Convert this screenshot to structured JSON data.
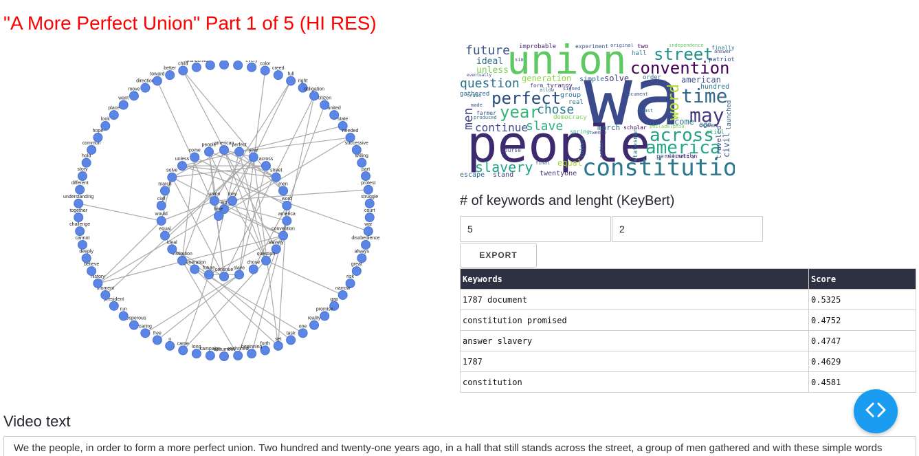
{
  "title": "\"A More Perfect Union\" Part 1 of 5 (HI RES)",
  "network": {
    "outer_nodes": [
      "government",
      "woman",
      "every",
      "color",
      "creed",
      "full",
      "right",
      "obligation",
      "citizen",
      "united",
      "state",
      "needed",
      "successive",
      "willing",
      "part",
      "protest",
      "struggle",
      "court",
      "war",
      "disobedience",
      "always",
      "great",
      "risk",
      "narrow",
      "gap",
      "promise",
      "reality",
      "one",
      "task",
      "set",
      "forth",
      "beginning",
      "enshrined",
      "document",
      "campaign",
      "long",
      "came",
      "u",
      "free",
      "caring",
      "prosperous",
      "run",
      "president",
      "moment",
      "history",
      "believe",
      "deeply",
      "cannot",
      "challenge",
      "together",
      "understanding",
      "different",
      "story",
      "hold",
      "common",
      "hope",
      "look",
      "place",
      "want",
      "move",
      "direction",
      "toward",
      "better",
      "child",
      "grandchild",
      "belief"
    ],
    "inner_nodes": [
      "american",
      "perfect",
      "year",
      "across",
      "street",
      "men",
      "word",
      "america",
      "convention",
      "slavery",
      "question",
      "chose",
      "slave",
      "continue",
      "future",
      "generation",
      "institution",
      "ideal",
      "equal",
      "would",
      "civil",
      "march",
      "solve",
      "unless",
      "come",
      "people",
      "union",
      "may",
      "wa",
      "time"
    ]
  },
  "wordcloud": {
    "words": [
      {
        "t": "wa",
        "c": "#3b4a8a"
      },
      {
        "t": "people",
        "c": "#3e2a6e"
      },
      {
        "t": "union",
        "c": "#5ec962"
      },
      {
        "t": "constitution",
        "c": "#2a788e"
      },
      {
        "t": "perfect",
        "c": "#2c4c80"
      },
      {
        "t": "convention",
        "c": "#440154"
      },
      {
        "t": "street",
        "c": "#21918c"
      },
      {
        "t": "time",
        "c": "#31688e"
      },
      {
        "t": "america",
        "c": "#22a884"
      },
      {
        "t": "across",
        "c": "#25a187"
      },
      {
        "t": "may",
        "c": "#443983"
      },
      {
        "t": "year",
        "c": "#35b779"
      },
      {
        "t": "slavery",
        "c": "#20a486"
      },
      {
        "t": "chose",
        "c": "#2a788e"
      },
      {
        "t": "slave",
        "c": "#29af7f"
      },
      {
        "t": "question",
        "c": "#2c728e"
      },
      {
        "t": "future",
        "c": "#3b528b"
      },
      {
        "t": "word",
        "c": "#b5de2b"
      },
      {
        "t": "continue",
        "c": "#3e4989"
      },
      {
        "t": "men",
        "c": "#414487"
      },
      {
        "t": "ideal",
        "c": "#2d708e"
      },
      {
        "t": "unless",
        "c": "#7ad151"
      },
      {
        "t": "american",
        "c": "#3b528b"
      },
      {
        "t": "hundred",
        "c": "#2a788e"
      },
      {
        "t": "march",
        "c": "#33638d"
      },
      {
        "t": "solve",
        "c": "#472d7b"
      },
      {
        "t": "equal",
        "c": "#addc30"
      },
      {
        "t": "generation",
        "c": "#90d743"
      },
      {
        "t": "civil",
        "c": "#3b528b"
      },
      {
        "t": "come",
        "c": "#2a788e"
      },
      {
        "t": "twentyone",
        "c": "#46337e"
      },
      {
        "t": "stand",
        "c": "#3e4989"
      },
      {
        "t": "escape",
        "c": "#31688e"
      },
      {
        "t": "improbable",
        "c": "#482475"
      },
      {
        "t": "experiment",
        "c": "#3b528b"
      },
      {
        "t": "two",
        "c": "#440154"
      },
      {
        "t": "hall",
        "c": "#287c8e"
      },
      {
        "t": "finally",
        "c": "#2a788e"
      },
      {
        "t": "patriot",
        "c": "#3b528b"
      },
      {
        "t": "ago",
        "c": "#2c728e"
      },
      {
        "t": "order",
        "c": "#31688e"
      },
      {
        "t": "launched",
        "c": "#33638d"
      },
      {
        "t": "traveled",
        "c": "#3e4989"
      },
      {
        "t": "group",
        "c": "#2d708e"
      },
      {
        "t": "farmer",
        "c": "#3b528b"
      },
      {
        "t": "gathered",
        "c": "#31688e"
      },
      {
        "t": "democracy",
        "c": "#7ad151"
      },
      {
        "t": "spring",
        "c": "#35b779"
      },
      {
        "t": "statesman",
        "c": "#2a788e"
      },
      {
        "t": "persecution",
        "c": "#3e4989"
      },
      {
        "t": "ocean",
        "c": "#3b528b"
      },
      {
        "t": "scholar",
        "c": "#440154"
      },
      {
        "t": "simple",
        "c": "#31688e"
      },
      {
        "t": "real",
        "c": "#2c728e"
      },
      {
        "t": "form",
        "c": "#3e4989"
      },
      {
        "t": "tyranny",
        "c": "#482878"
      },
      {
        "t": "twenty",
        "c": "#3b528b"
      },
      {
        "t": "nation",
        "c": "#31688e"
      },
      {
        "t": "colony",
        "c": "#2a788e"
      },
      {
        "t": "still",
        "c": "#35b779"
      },
      {
        "t": "original",
        "c": "#3b528b"
      },
      {
        "t": "independence",
        "c": "#5ec962"
      },
      {
        "t": "answer",
        "c": "#3e4989"
      },
      {
        "t": "document",
        "c": "#3b528b"
      },
      {
        "t": "least",
        "c": "#2c728e"
      },
      {
        "t": "philadelphia",
        "c": "#7ad151"
      },
      {
        "t": "course",
        "c": "#3b528b"
      },
      {
        "t": "final",
        "c": "#3e4989"
      },
      {
        "t": "ultimately",
        "c": "#482475"
      },
      {
        "t": "produced",
        "c": "#31688e"
      },
      {
        "t": "eventually",
        "c": "#3e4989"
      },
      {
        "t": "trade",
        "c": "#2a788e"
      },
      {
        "t": "made",
        "c": "#3b528b"
      },
      {
        "t": "sin",
        "c": "#3e4989"
      },
      {
        "t": "signed",
        "c": "#3b528b"
      },
      {
        "t": "allow",
        "c": "#31688e"
      }
    ]
  },
  "keybert": {
    "heading": "# of keywords and lenght (KeyBert)",
    "num_keywords": "5",
    "keyword_length": "2",
    "export_label": "EXPORT",
    "columns": [
      "Keywords",
      "Score"
    ],
    "rows": [
      {
        "keyword": "1787 document",
        "score": "0.5325"
      },
      {
        "keyword": "constitution promised",
        "score": "0.4752"
      },
      {
        "keyword": "answer slavery",
        "score": "0.4747"
      },
      {
        "keyword": "1787",
        "score": "0.4629"
      },
      {
        "keyword": "constitution",
        "score": "0.4581"
      }
    ]
  },
  "video": {
    "heading": "Video text",
    "text": "We the people, in order to form a more perfect union. Two hundred and twenty-one years ago, in a hall that still stands across the street, a group of men gathered and with these simple words"
  },
  "fab": {
    "icon": "code-icon",
    "color": "#1a9cf0"
  }
}
